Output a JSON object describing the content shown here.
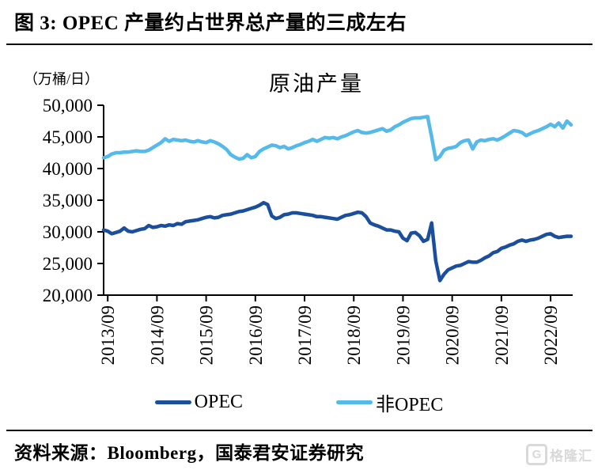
{
  "header": {
    "title": "图 3: OPEC 产量约占世界总产量的三成左右"
  },
  "chart": {
    "title": "原油产量",
    "unit_label": "（万桶/日）"
  },
  "legend": [
    {
      "label": "OPEC",
      "color": "#1b4f9c"
    },
    {
      "label": "非OPEC",
      "color": "#55b9e9"
    }
  ],
  "footer": {
    "source": "资料来源：Bloomberg，国泰君安证券研究"
  },
  "watermark": {
    "g_letter": "G",
    "text": "格隆汇",
    "color": "#d9d9d9"
  },
  "chart_data": {
    "type": "line",
    "title": "原油产量",
    "ylabel": "万桶/日",
    "xlabel": "",
    "ylim": [
      20000,
      50000
    ],
    "grid": false,
    "legend_position": "bottom",
    "x_range": {
      "start": "2013/08",
      "end": "2023/02",
      "freq": "monthly"
    },
    "x_tick_labels": [
      "2013/09",
      "2014/09",
      "2015/09",
      "2016/09",
      "2017/09",
      "2018/09",
      "2019/09",
      "2020/09",
      "2021/09",
      "2022/09"
    ],
    "x_tick_first_index": 1,
    "x_tick_interval": 12,
    "x_label_rotation": -90,
    "y_ticks": [
      20000,
      25000,
      30000,
      35000,
      40000,
      45000,
      50000
    ],
    "y_tick_labels": [
      "20,000",
      "25,000",
      "30,000",
      "35,000",
      "40,000",
      "45,000",
      "50,000"
    ],
    "series": [
      {
        "name": "OPEC",
        "color": "#1b4f9c",
        "values": [
          30300,
          30100,
          29700,
          29900,
          30100,
          30600,
          30100,
          30000,
          30200,
          30400,
          30500,
          31000,
          30700,
          30800,
          31000,
          30900,
          31100,
          31000,
          31300,
          31200,
          31600,
          31700,
          31800,
          31900,
          32100,
          32300,
          32400,
          32200,
          32300,
          32600,
          32700,
          32800,
          33000,
          33200,
          33300,
          33500,
          33700,
          33900,
          34200,
          34600,
          34300,
          32500,
          32100,
          32300,
          32700,
          32800,
          33000,
          33000,
          32900,
          32800,
          32700,
          32600,
          32400,
          32400,
          32300,
          32200,
          32100,
          32000,
          32300,
          32600,
          32700,
          32900,
          33100,
          33000,
          32400,
          31400,
          31100,
          30900,
          30600,
          30300,
          30300,
          30100,
          30000,
          29000,
          28600,
          29800,
          29900,
          29400,
          28500,
          28800,
          31400,
          25400,
          22300,
          23300,
          24000,
          24300,
          24600,
          24700,
          25000,
          25300,
          25200,
          25200,
          25500,
          25900,
          26200,
          26700,
          26900,
          27400,
          27600,
          27900,
          28100,
          28500,
          28700,
          28500,
          28700,
          28800,
          29000,
          29300,
          29600,
          29700,
          29300,
          29100,
          29200,
          29300,
          29300
        ]
      },
      {
        "name": "非OPEC",
        "color": "#55b9e9",
        "values": [
          41700,
          41900,
          42300,
          42500,
          42500,
          42600,
          42600,
          42700,
          42800,
          42700,
          42700,
          42900,
          43300,
          43700,
          44100,
          44700,
          44300,
          44600,
          44500,
          44400,
          44500,
          44300,
          44200,
          44400,
          44200,
          44100,
          44400,
          44200,
          43900,
          43500,
          43000,
          42200,
          41800,
          41500,
          41600,
          42200,
          41700,
          41900,
          42700,
          43100,
          43400,
          43700,
          43600,
          43300,
          43500,
          43100,
          43300,
          43600,
          43800,
          44100,
          44300,
          44600,
          44300,
          44600,
          44900,
          44800,
          44900,
          44700,
          45000,
          45200,
          45500,
          45800,
          46000,
          45700,
          45600,
          45700,
          45900,
          46100,
          46300,
          45900,
          46100,
          46600,
          46900,
          47300,
          47600,
          47900,
          48000,
          48000,
          48100,
          48200,
          45000,
          41400,
          41900,
          42900,
          43200,
          43300,
          43500,
          44100,
          44400,
          44500,
          43100,
          44200,
          44500,
          44400,
          44600,
          44700,
          44500,
          44800,
          45200,
          45600,
          46000,
          45900,
          45700,
          45200,
          45500,
          45800,
          46000,
          46300,
          46600,
          47000,
          46600,
          47200,
          46400,
          47500,
          46900
        ]
      }
    ]
  }
}
